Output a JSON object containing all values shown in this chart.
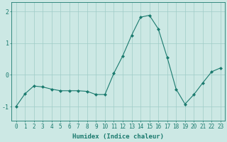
{
  "xlabel": "Humidex (Indice chaleur)",
  "x": [
    0,
    1,
    2,
    3,
    4,
    5,
    6,
    7,
    8,
    9,
    10,
    11,
    12,
    13,
    14,
    15,
    16,
    17,
    18,
    19,
    20,
    21,
    22,
    23
  ],
  "y": [
    -1.0,
    -0.6,
    -0.35,
    -0.38,
    -0.45,
    -0.5,
    -0.5,
    -0.5,
    -0.52,
    -0.62,
    -0.62,
    0.05,
    0.6,
    1.25,
    1.82,
    1.88,
    1.45,
    0.55,
    -0.45,
    -0.92,
    -0.62,
    -0.25,
    0.1,
    0.22
  ],
  "line_color": "#1a7a6e",
  "marker": "D",
  "marker_size": 2,
  "bg_color": "#cce8e4",
  "grid_color": "#9fccc7",
  "yticks": [
    -1,
    0,
    1,
    2
  ],
  "xticks": [
    0,
    1,
    2,
    3,
    4,
    5,
    6,
    7,
    8,
    9,
    10,
    11,
    12,
    13,
    14,
    15,
    16,
    17,
    18,
    19,
    20,
    21,
    22,
    23
  ],
  "ylim": [
    -1.45,
    2.3
  ],
  "xlim": [
    -0.5,
    23.5
  ],
  "xlabel_fontsize": 6.5,
  "tick_fontsize": 5.5
}
